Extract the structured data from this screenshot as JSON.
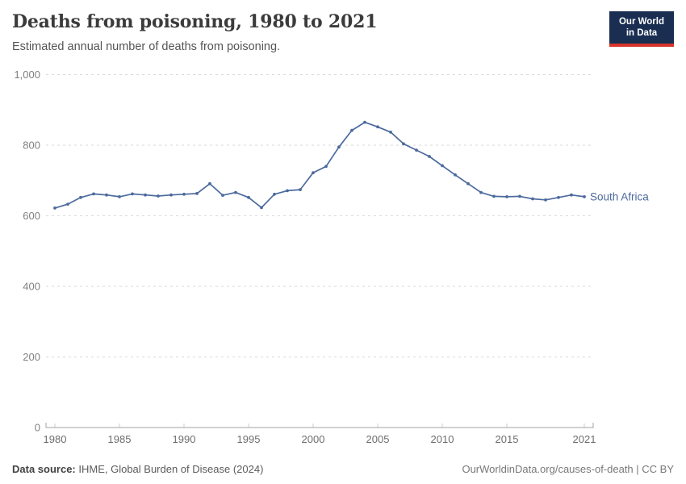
{
  "header": {
    "title": "Deaths from poisoning, 1980 to 2021",
    "subtitle": "Estimated annual number of deaths from poisoning."
  },
  "logo": {
    "line1": "Our World",
    "line2": "in Data"
  },
  "chart_data": {
    "type": "line",
    "title": "Deaths from poisoning, 1980 to 2021",
    "xlabel": "",
    "ylabel": "",
    "xlim": [
      1980,
      2021
    ],
    "ylim": [
      0,
      1000
    ],
    "grid": "dashed-horizontal",
    "legend_position": "end-of-line-label",
    "years": [
      1980,
      1981,
      1982,
      1983,
      1984,
      1985,
      1986,
      1987,
      1988,
      1989,
      1990,
      1991,
      1992,
      1993,
      1994,
      1995,
      1996,
      1997,
      1998,
      1999,
      2000,
      2001,
      2002,
      2003,
      2004,
      2005,
      2006,
      2007,
      2008,
      2009,
      2010,
      2011,
      2012,
      2013,
      2014,
      2015,
      2016,
      2017,
      2018,
      2019,
      2020,
      2021
    ],
    "series": [
      {
        "name": "South Africa",
        "color": "#4c6a9d",
        "values": [
          622,
          633,
          652,
          662,
          659,
          654,
          662,
          659,
          656,
          659,
          661,
          663,
          691,
          658,
          666,
          652,
          623,
          661,
          671,
          674,
          722,
          740,
          795,
          842,
          865,
          852,
          837,
          804,
          786,
          768,
          742,
          716,
          691,
          666,
          655,
          654,
          655,
          648,
          645,
          652,
          659,
          654
        ]
      }
    ],
    "yticks": [
      0,
      200,
      400,
      600,
      800,
      1000
    ],
    "ytick_labels": [
      "0",
      "200",
      "400",
      "600",
      "800",
      "1,000"
    ],
    "xticks": [
      1980,
      1985,
      1990,
      1995,
      2000,
      2005,
      2010,
      2015,
      2021
    ],
    "xtick_labels": [
      "1980",
      "1985",
      "1990",
      "1995",
      "2000",
      "2005",
      "2010",
      "2015",
      "2021"
    ]
  },
  "footer": {
    "source_label": "Data source:",
    "source_value": " IHME, Global Burden of Disease (2024)",
    "credit": "OurWorldinData.org/causes-of-death | CC BY"
  },
  "colors": {
    "line": "#4c6a9d",
    "gridline": "#dadada",
    "axis": "#a3a3a3",
    "tick": "#cccccc",
    "logo_bg": "#1a2e52",
    "logo_bar": "#d7352b"
  }
}
